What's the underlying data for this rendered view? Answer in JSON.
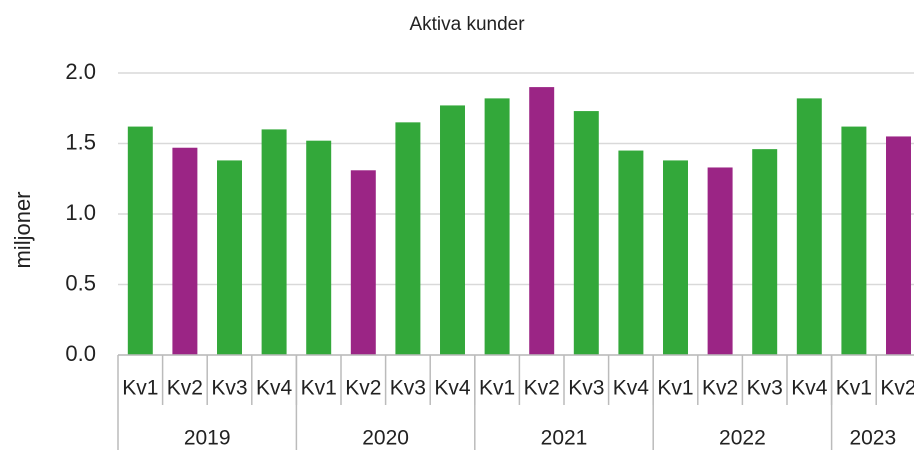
{
  "chart_data": {
    "type": "bar",
    "title": "Aktiva kunder",
    "title_color": "#9b2585",
    "ylabel": "miljoner",
    "groups": [
      {
        "label": "2019",
        "categories": [
          "Kv1",
          "Kv2",
          "Kv3",
          "Kv4"
        ]
      },
      {
        "label": "2020",
        "categories": [
          "Kv1",
          "Kv2",
          "Kv3",
          "Kv4"
        ]
      },
      {
        "label": "2021",
        "categories": [
          "Kv1",
          "Kv2",
          "Kv3",
          "Kv4"
        ]
      },
      {
        "label": "2022",
        "categories": [
          "Kv1",
          "Kv2",
          "Kv3",
          "Kv4"
        ]
      },
      {
        "label": "2023",
        "categories": [
          "Kv1",
          "Kv2"
        ]
      }
    ],
    "values": [
      1.62,
      1.47,
      1.38,
      1.6,
      1.52,
      1.31,
      1.65,
      1.77,
      1.82,
      1.9,
      1.73,
      1.45,
      1.38,
      1.33,
      1.46,
      1.82,
      1.62,
      1.55
    ],
    "colors": [
      "#33a83a",
      "#9b2585",
      "#33a83a",
      "#33a83a",
      "#33a83a",
      "#9b2585",
      "#33a83a",
      "#33a83a",
      "#33a83a",
      "#9b2585",
      "#33a83a",
      "#33a83a",
      "#33a83a",
      "#9b2585",
      "#33a83a",
      "#33a83a",
      "#33a83a",
      "#9b2585"
    ],
    "ylim": [
      0,
      2
    ],
    "yticks": [
      {
        "value": 0,
        "label": "0.0"
      },
      {
        "value": 0.5,
        "label": "0.5"
      },
      {
        "value": 1,
        "label": "1.0"
      },
      {
        "value": 1.5,
        "label": "1.5"
      },
      {
        "value": 2,
        "label": "2.0"
      }
    ],
    "grid": true
  }
}
